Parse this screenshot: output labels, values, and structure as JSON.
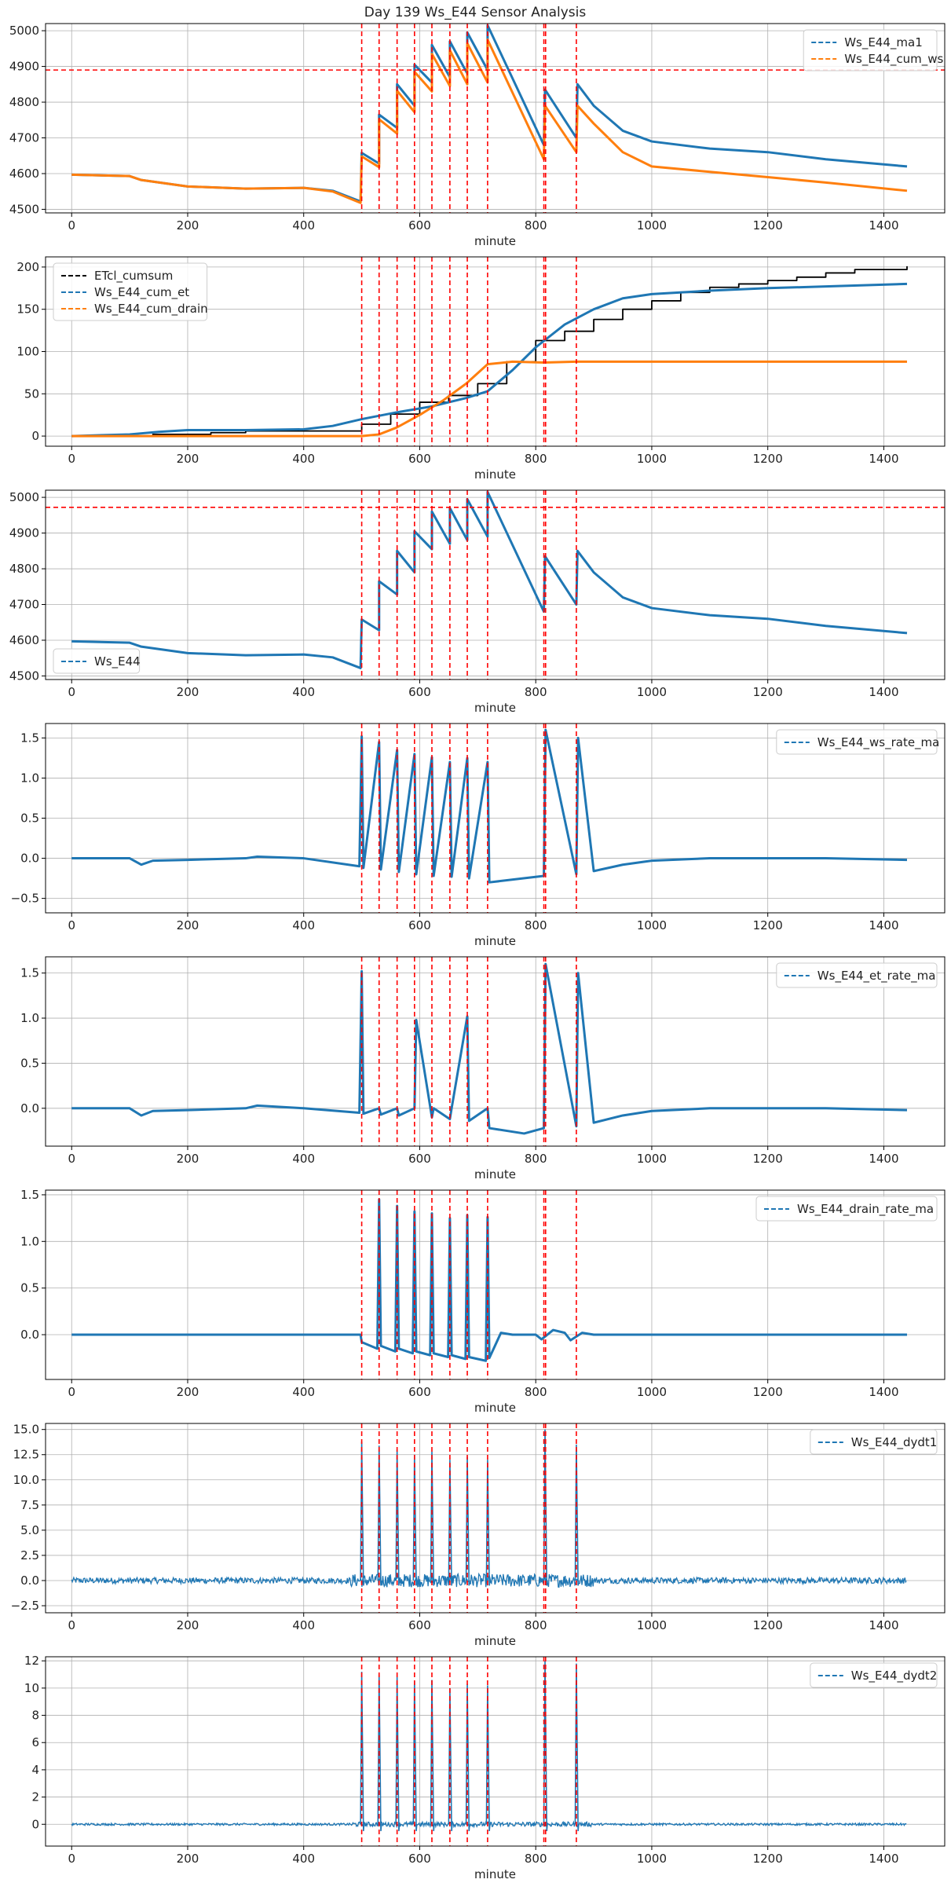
{
  "title": "Day 139 Ws_E44 Sensor Analysis",
  "colors": {
    "blue": "#1f77b4",
    "orange": "#ff7f0e",
    "black": "#000000",
    "red": "#ff0000",
    "grid": "#b0b0b0"
  },
  "event_lines_x": [
    500,
    530,
    561,
    591,
    621,
    652,
    682,
    717,
    814,
    817,
    870
  ],
  "chart_data": [
    {
      "type": "line",
      "xlabel": "minute",
      "xlim": [
        -45,
        1505
      ],
      "ylim": [
        4490,
        5020
      ],
      "xticks": [
        0,
        200,
        400,
        600,
        800,
        1000,
        1200,
        1400
      ],
      "yticks": [
        4500,
        4600,
        4700,
        4800,
        4900,
        5000
      ],
      "hline": 4890,
      "legend_position": "upper-right",
      "series": [
        {
          "name": "Ws_E44_ma1",
          "color": "blue",
          "x": [
            0,
            100,
            120,
            200,
            300,
            400,
            450,
            498,
            500,
            530,
            530,
            561,
            561,
            591,
            591,
            621,
            621,
            652,
            652,
            682,
            682,
            717,
            717,
            814,
            816,
            870,
            872,
            900,
            950,
            1000,
            1100,
            1200,
            1300,
            1440
          ],
          "y": [
            4597,
            4593,
            4582,
            4564,
            4558,
            4560,
            4552,
            4522,
            4658,
            4628,
            4765,
            4728,
            4850,
            4790,
            4905,
            4855,
            4960,
            4870,
            4970,
            4880,
            4995,
            4890,
            5015,
            4680,
            4835,
            4700,
            4850,
            4790,
            4720,
            4690,
            4670,
            4660,
            4640,
            4620
          ]
        },
        {
          "name": "Ws_E44_cum_ws",
          "color": "orange",
          "x": [
            0,
            100,
            120,
            200,
            300,
            400,
            450,
            498,
            500,
            530,
            530,
            561,
            561,
            591,
            591,
            621,
            621,
            652,
            652,
            682,
            682,
            717,
            717,
            814,
            816,
            870,
            872,
            900,
            950,
            1000,
            1100,
            1200,
            1300,
            1440
          ],
          "y": [
            4597,
            4593,
            4582,
            4564,
            4558,
            4560,
            4550,
            4518,
            4648,
            4618,
            4752,
            4712,
            4832,
            4772,
            4885,
            4830,
            4935,
            4845,
            4945,
            4850,
            4965,
            4855,
            4975,
            4640,
            4790,
            4660,
            4790,
            4740,
            4660,
            4620,
            4605,
            4590,
            4575,
            4552
          ]
        }
      ]
    },
    {
      "type": "line",
      "xlabel": "minute",
      "xlim": [
        -45,
        1505
      ],
      "ylim": [
        -12,
        212
      ],
      "xticks": [
        0,
        200,
        400,
        600,
        800,
        1000,
        1200,
        1400
      ],
      "yticks": [
        0,
        50,
        100,
        150,
        200
      ],
      "legend_position": "upper-left",
      "series": [
        {
          "name": "ETcl_cumsum",
          "color": "black",
          "step": true,
          "x": [
            0,
            140,
            240,
            300,
            500,
            550,
            600,
            650,
            700,
            750,
            800,
            850,
            900,
            950,
            1000,
            1050,
            1100,
            1150,
            1200,
            1250,
            1300,
            1350,
            1440
          ],
          "y": [
            0,
            2,
            4,
            6,
            14,
            26,
            40,
            48,
            62,
            88,
            113,
            124,
            138,
            150,
            160,
            170,
            176,
            180,
            184,
            188,
            193,
            197,
            201
          ]
        },
        {
          "name": "Ws_E44_cum_et",
          "color": "blue",
          "x": [
            0,
            100,
            150,
            200,
            300,
            400,
            450,
            500,
            560,
            620,
            680,
            717,
            760,
            800,
            850,
            900,
            950,
            1000,
            1100,
            1200,
            1300,
            1440
          ],
          "y": [
            0,
            2,
            5,
            7,
            7,
            8,
            12,
            20,
            28,
            35,
            45,
            53,
            78,
            105,
            132,
            150,
            163,
            168,
            172,
            175,
            177,
            180
          ]
        },
        {
          "name": "Ws_E44_cum_drain",
          "color": "orange",
          "x": [
            0,
            500,
            530,
            560,
            600,
            640,
            680,
            717,
            760,
            814,
            870,
            900,
            1000,
            1440
          ],
          "y": [
            0,
            0,
            2,
            10,
            25,
            42,
            62,
            85,
            88,
            87,
            88,
            88,
            88,
            88
          ]
        }
      ]
    },
    {
      "type": "line",
      "xlabel": "minute",
      "xlim": [
        -45,
        1505
      ],
      "ylim": [
        4490,
        5020
      ],
      "xticks": [
        0,
        200,
        400,
        600,
        800,
        1000,
        1200,
        1400
      ],
      "yticks": [
        4500,
        4600,
        4700,
        4800,
        4900,
        5000
      ],
      "hline": 4972,
      "legend_position": "lower-left",
      "series": [
        {
          "name": "Ws_E44",
          "color": "blue",
          "x": [
            0,
            100,
            120,
            200,
            300,
            400,
            450,
            498,
            500,
            530,
            530,
            561,
            561,
            591,
            591,
            621,
            621,
            652,
            652,
            682,
            682,
            717,
            717,
            814,
            816,
            870,
            872,
            900,
            950,
            1000,
            1100,
            1200,
            1300,
            1440
          ],
          "y": [
            4597,
            4593,
            4582,
            4564,
            4558,
            4560,
            4552,
            4522,
            4658,
            4628,
            4765,
            4728,
            4850,
            4790,
            4905,
            4855,
            4960,
            4870,
            4970,
            4880,
            4995,
            4890,
            5015,
            4680,
            4835,
            4700,
            4850,
            4790,
            4720,
            4690,
            4670,
            4660,
            4640,
            4620
          ]
        }
      ]
    },
    {
      "type": "line",
      "xlabel": "minute",
      "xlim": [
        -45,
        1505
      ],
      "ylim": [
        -0.68,
        1.68
      ],
      "xticks": [
        0,
        200,
        400,
        600,
        800,
        1000,
        1200,
        1400
      ],
      "yticks": [
        -0.5,
        0.0,
        0.5,
        1.0,
        1.5
      ],
      "yticklabels": [
        "−0.5",
        "0.0",
        "0.5",
        "1.0",
        "1.5"
      ],
      "legend_position": "upper-right",
      "series": [
        {
          "name": "Ws_E44_ws_rate_ma",
          "color": "blue",
          "x": [
            0,
            100,
            120,
            140,
            200,
            300,
            320,
            400,
            496,
            500,
            503,
            530,
            533,
            561,
            564,
            591,
            594,
            621,
            624,
            652,
            655,
            682,
            685,
            717,
            720,
            814,
            817,
            870,
            873,
            900,
            950,
            1000,
            1100,
            1200,
            1300,
            1440
          ],
          "y": [
            0.0,
            0.0,
            -0.08,
            -0.03,
            -0.02,
            0.0,
            0.02,
            0.0,
            -0.1,
            1.52,
            -0.12,
            1.45,
            -0.14,
            1.35,
            -0.17,
            1.3,
            -0.2,
            1.26,
            -0.22,
            1.2,
            -0.23,
            1.25,
            -0.25,
            1.2,
            -0.3,
            -0.22,
            1.6,
            -0.2,
            1.5,
            -0.16,
            -0.08,
            -0.03,
            0.0,
            0.0,
            0.0,
            -0.02
          ]
        }
      ]
    },
    {
      "type": "line",
      "xlabel": "minute",
      "xlim": [
        -45,
        1505
      ],
      "ylim": [
        -0.42,
        1.68
      ],
      "xticks": [
        0,
        200,
        400,
        600,
        800,
        1000,
        1200,
        1400
      ],
      "yticks": [
        0.0,
        0.5,
        1.0,
        1.5
      ],
      "yticklabels": [
        "0.0",
        "0.5",
        "1.0",
        "1.5"
      ],
      "legend_position": "upper-right",
      "series": [
        {
          "name": "Ws_E44_et_rate_ma",
          "color": "blue",
          "x": [
            0,
            100,
            120,
            140,
            200,
            300,
            320,
            400,
            496,
            500,
            503,
            530,
            533,
            561,
            564,
            591,
            594,
            621,
            624,
            652,
            655,
            682,
            685,
            717,
            720,
            780,
            814,
            817,
            870,
            873,
            900,
            950,
            1000,
            1100,
            1200,
            1300,
            1440
          ],
          "y": [
            0.0,
            0.0,
            -0.08,
            -0.03,
            -0.02,
            0.0,
            0.03,
            0.0,
            -0.05,
            1.52,
            -0.06,
            0.0,
            -0.07,
            0.0,
            -0.08,
            0.0,
            0.98,
            -0.1,
            0.0,
            -0.12,
            0.0,
            1.02,
            -0.14,
            0.0,
            -0.22,
            -0.28,
            -0.22,
            1.6,
            -0.2,
            1.5,
            -0.16,
            -0.08,
            -0.03,
            0.0,
            0.0,
            0.0,
            -0.02
          ]
        }
      ]
    },
    {
      "type": "line",
      "xlabel": "minute",
      "xlim": [
        -45,
        1505
      ],
      "ylim": [
        -0.48,
        1.55
      ],
      "xticks": [
        0,
        200,
        400,
        600,
        800,
        1000,
        1200,
        1400
      ],
      "yticks": [
        0.0,
        0.5,
        1.0,
        1.5
      ],
      "yticklabels": [
        "0.0",
        "0.5",
        "1.0",
        "1.5"
      ],
      "legend_position": "upper-right",
      "series": [
        {
          "name": "Ws_E44_drain_rate_ma",
          "color": "blue",
          "x": [
            0,
            498,
            500,
            527,
            530,
            533,
            558,
            561,
            564,
            588,
            591,
            594,
            618,
            621,
            624,
            649,
            652,
            655,
            679,
            682,
            685,
            714,
            717,
            720,
            740,
            760,
            800,
            810,
            830,
            850,
            860,
            880,
            900,
            1440
          ],
          "y": [
            0.0,
            0.0,
            -0.08,
            -0.15,
            1.45,
            -0.12,
            -0.18,
            1.38,
            -0.15,
            -0.2,
            1.32,
            -0.18,
            -0.22,
            1.3,
            -0.2,
            -0.24,
            1.25,
            -0.22,
            -0.26,
            1.28,
            -0.24,
            -0.28,
            1.26,
            -0.25,
            0.02,
            0.0,
            0.0,
            -0.05,
            0.05,
            0.02,
            -0.06,
            0.02,
            0.0,
            0.0
          ]
        }
      ]
    },
    {
      "type": "line",
      "xlabel": "minute",
      "xlim": [
        -45,
        1505
      ],
      "ylim": [
        -3.2,
        15.6
      ],
      "xticks": [
        0,
        200,
        400,
        600,
        800,
        1000,
        1200,
        1400
      ],
      "yticks": [
        -2.5,
        0.0,
        2.5,
        5.0,
        7.5,
        10.0,
        12.5,
        15.0
      ],
      "yticklabels": [
        "−2.5",
        "0.0",
        "2.5",
        "5.0",
        "7.5",
        "10.0",
        "12.5",
        "15.0"
      ],
      "legend_position": "upper-right",
      "noise": 0.3,
      "series": [
        {
          "name": "Ws_E44_dydt1",
          "color": "blue",
          "spikes": [
            {
              "x": 500,
              "y": 13.8
            },
            {
              "x": 530,
              "y": 13.4
            },
            {
              "x": 561,
              "y": 13.0
            },
            {
              "x": 591,
              "y": 12.5
            },
            {
              "x": 621,
              "y": 12.8
            },
            {
              "x": 652,
              "y": 12.0
            },
            {
              "x": 682,
              "y": 12.3
            },
            {
              "x": 717,
              "y": 12.0
            },
            {
              "x": 816,
              "y": 15.0
            },
            {
              "x": 870,
              "y": 13.5
            }
          ]
        }
      ]
    },
    {
      "type": "line",
      "xlabel": "minute",
      "xlim": [
        -45,
        1505
      ],
      "ylim": [
        -1.6,
        12.3
      ],
      "xticks": [
        0,
        200,
        400,
        600,
        800,
        1000,
        1200,
        1400
      ],
      "yticks": [
        0,
        2,
        4,
        6,
        8,
        10,
        12
      ],
      "legend_position": "upper-right",
      "noise": 0.08,
      "series": [
        {
          "name": "Ws_E44_dydt2",
          "color": "blue",
          "spikes": [
            {
              "x": 500,
              "y": 11.2
            },
            {
              "x": 530,
              "y": 11.0
            },
            {
              "x": 561,
              "y": 10.8
            },
            {
              "x": 591,
              "y": 10.5
            },
            {
              "x": 621,
              "y": 10.6
            },
            {
              "x": 652,
              "y": 10.0
            },
            {
              "x": 682,
              "y": 10.3
            },
            {
              "x": 717,
              "y": 10.2
            },
            {
              "x": 816,
              "y": 12.0
            },
            {
              "x": 870,
              "y": 11.8
            }
          ]
        }
      ]
    }
  ]
}
